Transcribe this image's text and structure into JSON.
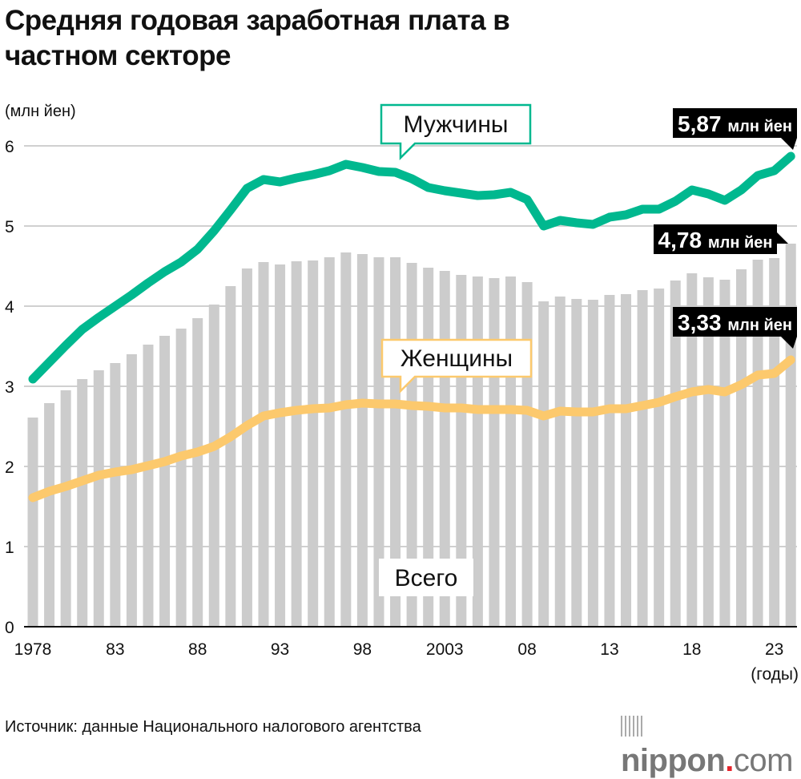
{
  "title_lines": [
    "Средняя годовая заработная плата в",
    "частном секторе"
  ],
  "source": "Источник: данные Национального налогового агентства",
  "logo": {
    "main": "nippon",
    "dot": ".",
    "suffix": "com"
  },
  "chart_data": {
    "type": "bar+line",
    "title": "Средняя годовая заработная плата в частном секторе",
    "ylabel": "(млн йен)",
    "xlabel": "(годы)",
    "ylim": [
      0,
      6
    ],
    "yticks": [
      0,
      1,
      2,
      3,
      4,
      5,
      6
    ],
    "grid": true,
    "x": [
      1978,
      1979,
      1980,
      1981,
      1982,
      1983,
      1984,
      1985,
      1986,
      1987,
      1988,
      1989,
      1990,
      1991,
      1992,
      1993,
      1994,
      1995,
      1996,
      1997,
      1998,
      1999,
      2000,
      2001,
      2002,
      2003,
      2004,
      2005,
      2006,
      2007,
      2008,
      2009,
      2010,
      2011,
      2012,
      2013,
      2014,
      2015,
      2016,
      2017,
      2018,
      2019,
      2020,
      2021,
      2022,
      2023,
      2024
    ],
    "xtick_labels": [
      {
        "year": 1978,
        "label": "1978"
      },
      {
        "year": 1983,
        "label": "83"
      },
      {
        "year": 1988,
        "label": "88"
      },
      {
        "year": 1993,
        "label": "93"
      },
      {
        "year": 1998,
        "label": "98"
      },
      {
        "year": 2003,
        "label": "2003"
      },
      {
        "year": 2008,
        "label": "08"
      },
      {
        "year": 2013,
        "label": "13"
      },
      {
        "year": 2018,
        "label": "18"
      },
      {
        "year": 2023,
        "label": "23"
      }
    ],
    "colors": {
      "total": "#cccccc",
      "men": "#00b88f",
      "women": "#fcc96d",
      "label_bg": "#000000"
    },
    "series": [
      {
        "name": "Всего",
        "type": "bar",
        "values": [
          2.61,
          2.79,
          2.95,
          3.09,
          3.2,
          3.29,
          3.4,
          3.52,
          3.63,
          3.72,
          3.85,
          4.02,
          4.25,
          4.47,
          4.55,
          4.52,
          4.56,
          4.57,
          4.61,
          4.67,
          4.65,
          4.61,
          4.61,
          4.54,
          4.48,
          4.44,
          4.39,
          4.37,
          4.35,
          4.37,
          4.3,
          4.06,
          4.12,
          4.09,
          4.08,
          4.14,
          4.15,
          4.2,
          4.22,
          4.32,
          4.41,
          4.36,
          4.33,
          4.46,
          4.58,
          4.6,
          4.78
        ],
        "end_label": {
          "value": "4,78",
          "unit": "млн йен"
        }
      },
      {
        "name": "Мужчины",
        "type": "line",
        "values": [
          3.09,
          3.3,
          3.51,
          3.71,
          3.86,
          4.0,
          4.14,
          4.29,
          4.43,
          4.55,
          4.71,
          4.94,
          5.2,
          5.47,
          5.58,
          5.55,
          5.6,
          5.64,
          5.69,
          5.77,
          5.73,
          5.68,
          5.67,
          5.59,
          5.48,
          5.44,
          5.41,
          5.38,
          5.39,
          5.42,
          5.33,
          5.0,
          5.07,
          5.04,
          5.02,
          5.11,
          5.14,
          5.21,
          5.21,
          5.31,
          5.45,
          5.4,
          5.32,
          5.45,
          5.63,
          5.69,
          5.87
        ],
        "end_label": {
          "value": "5,87",
          "unit": "млн йен"
        }
      },
      {
        "name": "Женщины",
        "type": "line",
        "values": [
          1.61,
          1.69,
          1.75,
          1.82,
          1.89,
          1.93,
          1.96,
          2.01,
          2.06,
          2.13,
          2.18,
          2.25,
          2.37,
          2.51,
          2.63,
          2.67,
          2.7,
          2.72,
          2.73,
          2.77,
          2.79,
          2.78,
          2.78,
          2.76,
          2.75,
          2.73,
          2.73,
          2.71,
          2.71,
          2.71,
          2.7,
          2.63,
          2.69,
          2.68,
          2.68,
          2.72,
          2.72,
          2.76,
          2.8,
          2.87,
          2.93,
          2.96,
          2.93,
          3.02,
          3.14,
          3.16,
          3.33
        ],
        "end_label": {
          "value": "3,33",
          "unit": "млн йен"
        }
      }
    ]
  }
}
